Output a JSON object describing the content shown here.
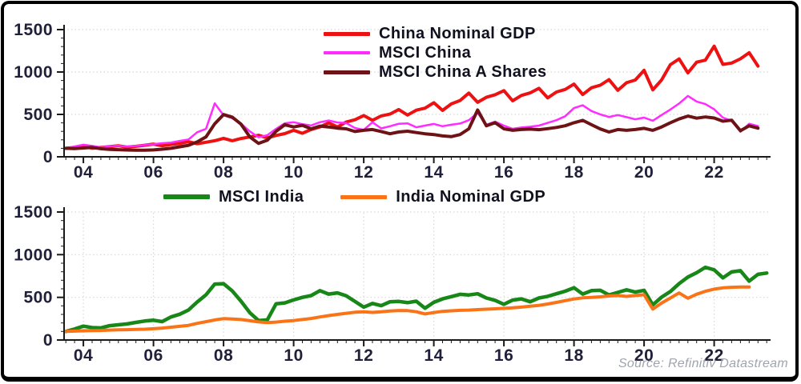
{
  "source_note": "Source: Refinitiv Datastream",
  "colors": {
    "axis": "#1a1a1a",
    "tick_label": "#20203a",
    "grid": "#d8d8d8",
    "frame": "#000000",
    "legend_text": "#10101e",
    "source_text": "#9fa4ad"
  },
  "chart_data": [
    {
      "type": "line",
      "title": "",
      "panel": "top",
      "xlim": [
        2003.45,
        2023.61
      ],
      "ylim": [
        0,
        1500
      ],
      "y_ticks": [
        0,
        500,
        1000,
        1500
      ],
      "y_tick_labels": [
        "0",
        "500",
        "1000",
        "1500"
      ],
      "y_minor_step": 100,
      "x_tick_years": [
        2004,
        2006,
        2008,
        2010,
        2012,
        2014,
        2016,
        2018,
        2020,
        2022
      ],
      "x_tick_labels": [
        "04",
        "06",
        "08",
        "10",
        "12",
        "14",
        "16",
        "18",
        "20",
        "22"
      ],
      "x_minor_step": 0.25,
      "grid_horizontal": true,
      "grid_vertical": false,
      "legend_position": "inside-top",
      "series": [
        {
          "name": "China Nominal GDP",
          "color": "#ee1111",
          "width": 4,
          "x0": 2003.5,
          "dx": 0.25,
          "values": [
            100,
            110,
            118,
            102,
            110,
            120,
            130,
            114,
            124,
            136,
            150,
            130,
            144,
            158,
            178,
            154,
            172,
            190,
            218,
            190,
            216,
            234,
            254,
            224,
            252,
            274,
            312,
            277,
            322,
            352,
            400,
            352,
            410,
            437,
            487,
            430,
            482,
            504,
            558,
            492,
            550,
            574,
            638,
            547,
            624,
            664,
            752,
            642,
            702,
            732,
            780,
            660,
            724,
            754,
            808,
            694,
            764,
            794,
            858,
            734,
            814,
            844,
            910,
            784,
            874,
            906,
            1020,
            790,
            906,
            1086,
            1155,
            990,
            1116,
            1140,
            1305,
            1090,
            1106,
            1156,
            1227,
            1070
          ]
        },
        {
          "name": "MSCI China",
          "color": "#ff2bff",
          "width": 2.5,
          "x0": 2003.5,
          "dx": 0.25,
          "values": [
            100,
            122,
            142,
            128,
            112,
            124,
            130,
            120,
            128,
            138,
            148,
            160,
            168,
            188,
            205,
            290,
            330,
            630,
            490,
            455,
            390,
            300,
            230,
            255,
            330,
            395,
            408,
            385,
            370,
            408,
            428,
            405,
            398,
            340,
            318,
            408,
            335,
            360,
            390,
            394,
            348,
            368,
            388,
            360,
            378,
            392,
            432,
            518,
            378,
            415,
            368,
            330,
            345,
            355,
            368,
            400,
            432,
            478,
            575,
            608,
            540,
            500,
            470,
            492,
            468,
            442,
            462,
            425,
            492,
            558,
            628,
            718,
            652,
            622,
            560,
            462,
            425,
            295,
            390,
            362
          ]
        },
        {
          "name": "MSCI China A Shares",
          "color": "#6e1315",
          "width": 4,
          "x0": 2003.5,
          "dx": 0.25,
          "values": [
            100,
            97,
            104,
            110,
            95,
            87,
            84,
            80,
            78,
            77,
            81,
            90,
            100,
            118,
            136,
            175,
            235,
            390,
            498,
            468,
            385,
            235,
            158,
            195,
            300,
            378,
            352,
            372,
            330,
            362,
            352,
            338,
            330,
            298,
            312,
            322,
            298,
            272,
            292,
            302,
            286,
            272,
            262,
            246,
            238,
            262,
            330,
            552,
            365,
            402,
            330,
            312,
            322,
            326,
            320,
            332,
            346,
            366,
            402,
            430,
            378,
            328,
            292,
            322,
            312,
            322,
            336,
            312,
            352,
            402,
            446,
            480,
            456,
            470,
            458,
            420,
            432,
            308,
            365,
            338
          ]
        }
      ]
    },
    {
      "type": "line",
      "title": "",
      "panel": "bottom",
      "xlim": [
        2003.45,
        2023.61
      ],
      "ylim": [
        0,
        1500
      ],
      "y_ticks": [
        0,
        500,
        1000,
        1500
      ],
      "y_tick_labels": [
        "0",
        "500",
        "1000",
        "1500"
      ],
      "y_minor_step": 100,
      "x_tick_years": [
        2004,
        2006,
        2008,
        2010,
        2012,
        2014,
        2016,
        2018,
        2020,
        2022
      ],
      "x_tick_labels": [
        "04",
        "06",
        "08",
        "10",
        "12",
        "14",
        "16",
        "18",
        "20",
        "22"
      ],
      "x_minor_step": 0.25,
      "grid_horizontal": true,
      "grid_vertical": true,
      "legend_position": "above",
      "series": [
        {
          "name": "MSCI India",
          "color": "#178717",
          "width": 4.5,
          "x0": 2003.5,
          "dx": 0.25,
          "values": [
            100,
            128,
            162,
            145,
            142,
            168,
            178,
            188,
            206,
            222,
            232,
            216,
            270,
            302,
            352,
            445,
            530,
            655,
            660,
            575,
            455,
            320,
            228,
            235,
            425,
            435,
            470,
            500,
            520,
            578,
            538,
            552,
            518,
            452,
            385,
            428,
            402,
            448,
            452,
            438,
            455,
            372,
            442,
            482,
            508,
            535,
            528,
            542,
            492,
            465,
            418,
            468,
            482,
            448,
            492,
            512,
            542,
            572,
            612,
            538,
            578,
            582,
            528,
            558,
            588,
            562,
            582,
            412,
            502,
            568,
            660,
            738,
            788,
            852,
            822,
            728,
            798,
            812,
            690,
            770,
            785
          ]
        },
        {
          "name": "India Nominal GDP",
          "color": "#fb7317",
          "width": 4,
          "x0": 2003.5,
          "dx": 0.25,
          "values": [
            100,
            104,
            108,
            110,
            112,
            116,
            119,
            121,
            124,
            127,
            132,
            140,
            150,
            160,
            172,
            195,
            215,
            235,
            250,
            246,
            240,
            226,
            212,
            204,
            210,
            220,
            228,
            240,
            252,
            270,
            286,
            300,
            313,
            325,
            331,
            323,
            331,
            339,
            346,
            344,
            331,
            306,
            322,
            336,
            342,
            348,
            351,
            356,
            361,
            366,
            371,
            377,
            385,
            396,
            406,
            422,
            441,
            461,
            481,
            494,
            500,
            506,
            516,
            521,
            511,
            521,
            531,
            362,
            432,
            492,
            551,
            489,
            536,
            571,
            596,
            611,
            618,
            621,
            621
          ]
        }
      ]
    }
  ]
}
